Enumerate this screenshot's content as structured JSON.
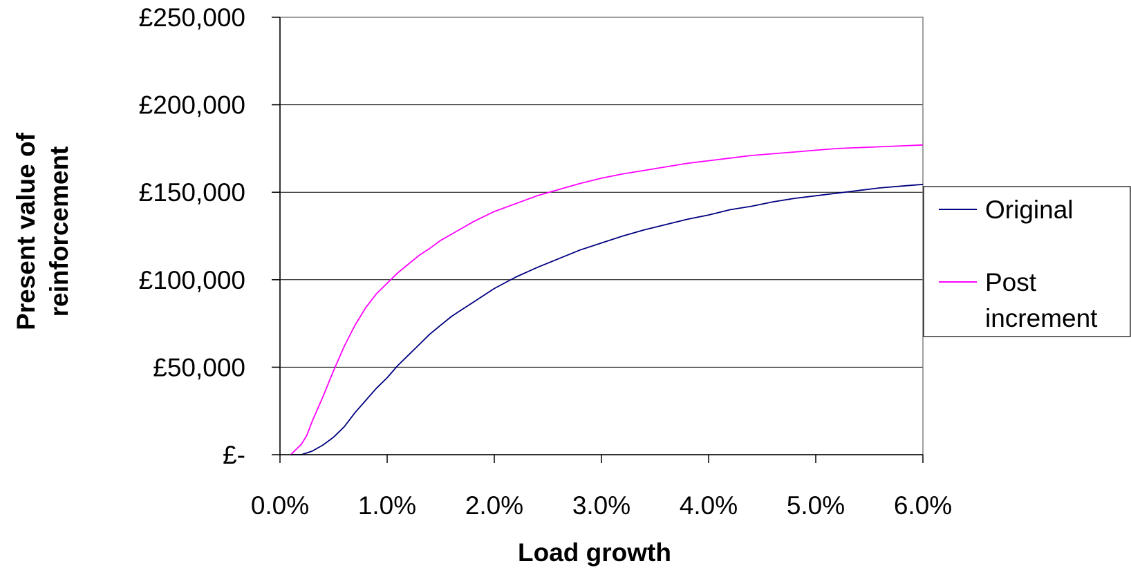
{
  "chart_data": {
    "type": "line",
    "xlabel": "Load growth",
    "ylabel_lines": [
      "Present value of",
      "reinforcement"
    ],
    "xlim": [
      0.0,
      6.0
    ],
    "ylim": [
      0,
      250000
    ],
    "x_ticks": [
      {
        "value": 0.0,
        "label": "0.0%"
      },
      {
        "value": 1.0,
        "label": "1.0%"
      },
      {
        "value": 2.0,
        "label": "2.0%"
      },
      {
        "value": 3.0,
        "label": "3.0%"
      },
      {
        "value": 4.0,
        "label": "4.0%"
      },
      {
        "value": 5.0,
        "label": "5.0%"
      },
      {
        "value": 6.0,
        "label": "6.0%"
      }
    ],
    "y_ticks": [
      {
        "value": 0,
        "label": "£-"
      },
      {
        "value": 50000,
        "label": "£50,000"
      },
      {
        "value": 100000,
        "label": "£100,000"
      },
      {
        "value": 150000,
        "label": "£150,000"
      },
      {
        "value": 200000,
        "label": "£200,000"
      },
      {
        "value": 250000,
        "label": "£250,000"
      }
    ],
    "grid": "horizontal",
    "legend_position": "right",
    "series": [
      {
        "name": "Original",
        "color": "#000080",
        "x": [
          0.1,
          0.2,
          0.3,
          0.4,
          0.5,
          0.6,
          0.7,
          0.8,
          0.9,
          1.0,
          1.1,
          1.2,
          1.3,
          1.4,
          1.5,
          1.6,
          1.7,
          1.8,
          1.9,
          2.0,
          2.2,
          2.4,
          2.6,
          2.8,
          3.0,
          3.2,
          3.4,
          3.6,
          3.8,
          4.0,
          4.2,
          4.4,
          4.6,
          4.8,
          5.0,
          5.2,
          5.4,
          5.6,
          5.8,
          6.0
        ],
        "y": [
          0,
          0,
          2000,
          5500,
          10000,
          16000,
          24000,
          31000,
          38000,
          44000,
          51000,
          57000,
          63000,
          69000,
          74000,
          79000,
          83000,
          87000,
          91000,
          95000,
          101500,
          107000,
          112000,
          117000,
          121000,
          125000,
          128500,
          131500,
          134500,
          137000,
          140000,
          142000,
          144500,
          146500,
          148000,
          149500,
          151000,
          152500,
          153500,
          154500
        ]
      },
      {
        "name": "Post increment",
        "color": "#FF00FF",
        "x": [
          0.1,
          0.2,
          0.25,
          0.3,
          0.4,
          0.5,
          0.6,
          0.7,
          0.8,
          0.9,
          1.0,
          1.1,
          1.2,
          1.3,
          1.4,
          1.5,
          1.6,
          1.7,
          1.8,
          1.9,
          2.0,
          2.2,
          2.4,
          2.6,
          2.8,
          3.0,
          3.2,
          3.4,
          3.6,
          3.8,
          4.0,
          4.2,
          4.4,
          4.6,
          4.8,
          5.0,
          5.2,
          5.4,
          5.6,
          5.8,
          6.0
        ],
        "y": [
          0,
          6000,
          11000,
          19000,
          33000,
          48000,
          62000,
          74000,
          84000,
          92000,
          98000,
          104000,
          109000,
          114000,
          118000,
          122500,
          126000,
          129500,
          133000,
          136000,
          139000,
          143500,
          148000,
          151500,
          155000,
          158000,
          160500,
          162500,
          164500,
          166500,
          168000,
          169500,
          171000,
          172000,
          173000,
          174000,
          175000,
          175500,
          176000,
          176500,
          177000
        ]
      }
    ]
  }
}
